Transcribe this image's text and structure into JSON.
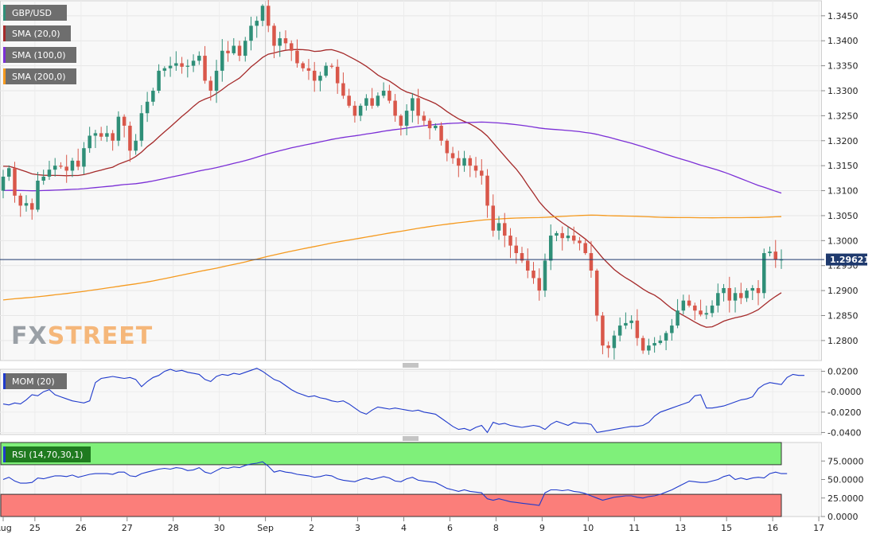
{
  "chart_data": [
    {
      "type": "candlestick",
      "symbol": "GBP/USD",
      "watermark": {
        "prefix": "FX",
        "suffix": "STREET"
      },
      "last_price_label": "1.29621",
      "last_price": 1.29621,
      "ylim": [
        1.276,
        1.348
      ],
      "y_ticks": [
        {
          "value": 1.345,
          "label": "1.3450"
        },
        {
          "value": 1.34,
          "label": "1.3400"
        },
        {
          "value": 1.335,
          "label": "1.3350"
        },
        {
          "value": 1.33,
          "label": "1.3300"
        },
        {
          "value": 1.325,
          "label": "1.3250"
        },
        {
          "value": 1.32,
          "label": "1.3200"
        },
        {
          "value": 1.315,
          "label": "1.3150"
        },
        {
          "value": 1.31,
          "label": "1.3100"
        },
        {
          "value": 1.305,
          "label": "1.3050"
        },
        {
          "value": 1.3,
          "label": "1.3000"
        },
        {
          "value": 1.295,
          "label": "1.2950"
        },
        {
          "value": 1.29,
          "label": "1.2900"
        },
        {
          "value": 1.285,
          "label": "1.2850"
        },
        {
          "value": 1.28,
          "label": "1.2800"
        }
      ],
      "x_ticks": [
        "Aug",
        "25",
        "26",
        "27",
        "28",
        "30",
        "Sep",
        "2",
        "3",
        "4",
        "6",
        "8",
        "9",
        "10",
        "11",
        "13",
        "15",
        "16",
        "17"
      ],
      "x_tick_index": [
        0,
        5.5,
        13.5,
        21.5,
        29.5,
        37.5,
        45.5,
        53.5,
        61.5,
        69.5,
        77.5,
        85.5,
        93.5,
        101.5,
        109.5,
        117.5,
        125.5,
        133.5,
        141.5
      ],
      "series": [
        {
          "name": "SMA (20,0)",
          "color": "#a52a2a"
        },
        {
          "name": "SMA (100,0)",
          "color": "#7b2fd6"
        },
        {
          "name": "SMA (200,0)",
          "color": "#f59a1f"
        }
      ],
      "colors": {
        "up": "#2f8f78",
        "down": "#d9574a",
        "price_line": "#1f3a6e"
      },
      "candles_close": [
        1.3128,
        1.3145,
        1.309,
        1.307,
        1.3075,
        1.3062,
        1.312,
        1.3128,
        1.3142,
        1.315,
        1.3148,
        1.314,
        1.316,
        1.3148,
        1.3185,
        1.321,
        1.3215,
        1.3208,
        1.3215,
        1.32,
        1.3248,
        1.323,
        1.318,
        1.32,
        1.3255,
        1.3278,
        1.33,
        1.334,
        1.3345,
        1.335,
        1.3355,
        1.3348,
        1.335,
        1.336,
        1.337,
        1.332,
        1.33,
        1.334,
        1.338,
        1.3375,
        1.339,
        1.337,
        1.34,
        1.343,
        1.344,
        1.347,
        1.343,
        1.339,
        1.3405,
        1.3395,
        1.338,
        1.3355,
        1.3345,
        1.334,
        1.332,
        1.333,
        1.335,
        1.3348,
        1.3315,
        1.329,
        1.327,
        1.325,
        1.327,
        1.3285,
        1.327,
        1.329,
        1.33,
        1.328,
        1.325,
        1.323,
        1.326,
        1.3285,
        1.325,
        1.324,
        1.3225,
        1.323,
        1.32,
        1.3175,
        1.3165,
        1.315,
        1.3165,
        1.315,
        1.314,
        1.313,
        1.307,
        1.302,
        1.3035,
        1.301,
        1.299,
        1.2975,
        1.296,
        1.294,
        1.2925,
        1.29,
        1.296,
        1.301,
        1.3015,
        1.3005,
        1.301,
        1.3,
        1.2995,
        1.2975,
        1.294,
        1.285,
        1.279,
        1.2785,
        1.281,
        1.283,
        1.2835,
        1.284,
        1.2805,
        1.278,
        1.279,
        1.2795,
        1.28,
        1.2815,
        1.283,
        1.286,
        1.288,
        1.287,
        1.286,
        1.2852,
        1.2855,
        1.287,
        1.2895,
        1.2905,
        1.288,
        1.2895,
        1.2885,
        1.29,
        1.2905,
        1.2895,
        1.2975,
        1.2978,
        1.2962,
        1.2962
      ]
    },
    {
      "type": "line",
      "label": "MOM (20)",
      "ylim": [
        -0.042,
        0.022
      ],
      "y_ticks": [
        {
          "value": 0.02,
          "label": "0.0200"
        },
        {
          "value": 0.0,
          "label": "-0.0000"
        },
        {
          "value": -0.02,
          "label": "-0.0200"
        },
        {
          "value": -0.04,
          "label": "-0.0400"
        }
      ],
      "color": "#1f3acc",
      "values": [
        -0.012,
        -0.013,
        -0.011,
        -0.012,
        -0.008,
        -0.003,
        -0.004,
        0.0,
        0.002,
        -0.003,
        -0.005,
        -0.007,
        -0.009,
        -0.01,
        -0.011,
        -0.009,
        0.009,
        0.013,
        0.014,
        0.015,
        0.014,
        0.013,
        0.014,
        0.012,
        0.005,
        0.01,
        0.014,
        0.016,
        0.02,
        0.022,
        0.02,
        0.021,
        0.019,
        0.018,
        0.017,
        0.012,
        0.01,
        0.015,
        0.017,
        0.016,
        0.018,
        0.017,
        0.019,
        0.021,
        0.023,
        0.02,
        0.016,
        0.012,
        0.01,
        0.006,
        0.002,
        -0.001,
        -0.003,
        -0.005,
        -0.004,
        -0.006,
        -0.007,
        -0.009,
        -0.01,
        -0.009,
        -0.012,
        -0.016,
        -0.02,
        -0.022,
        -0.018,
        -0.015,
        -0.016,
        -0.017,
        -0.016,
        -0.017,
        -0.018,
        -0.019,
        -0.018,
        -0.02,
        -0.021,
        -0.022,
        -0.026,
        -0.03,
        -0.034,
        -0.037,
        -0.036,
        -0.038,
        -0.035,
        -0.033,
        -0.04,
        -0.03,
        -0.032,
        -0.031,
        -0.033,
        -0.034,
        -0.035,
        -0.034,
        -0.033,
        -0.034,
        -0.037,
        -0.032,
        -0.029,
        -0.031,
        -0.033,
        -0.03,
        -0.031,
        -0.031,
        -0.032,
        -0.04,
        -0.039,
        -0.038,
        -0.037,
        -0.036,
        -0.035,
        -0.034,
        -0.034,
        -0.033,
        -0.03,
        -0.024,
        -0.02,
        -0.018,
        -0.016,
        -0.014,
        -0.012,
        -0.01,
        -0.004,
        -0.003,
        -0.016,
        -0.016,
        -0.015,
        -0.014,
        -0.012,
        -0.01,
        -0.008,
        -0.007,
        -0.005,
        0.003,
        0.007,
        0.009,
        0.008,
        0.007,
        0.014,
        0.017,
        0.016,
        0.016
      ]
    },
    {
      "type": "line",
      "label": "RSI (14,70,30,1)",
      "ylim": [
        0,
        100
      ],
      "overbought": 70,
      "oversold": 30,
      "y_ticks": [
        {
          "value": 75,
          "label": "75.0000"
        },
        {
          "value": 50,
          "label": "50.0000"
        },
        {
          "value": 25,
          "label": "25.0000"
        },
        {
          "value": 0,
          "label": "0.0000"
        }
      ],
      "color": "#1f3acc",
      "band_colors": {
        "overbought": "#7ff07a",
        "oversold": "#fb7e7a"
      },
      "values": [
        50,
        53,
        48,
        45,
        45,
        46,
        52,
        51,
        53,
        55,
        55,
        54,
        56,
        53,
        55,
        57,
        58,
        58,
        58,
        57,
        60,
        60,
        55,
        54,
        58,
        60,
        62,
        64,
        65,
        64,
        66,
        65,
        62,
        63,
        66,
        60,
        58,
        62,
        66,
        65,
        67,
        66,
        69,
        71,
        72,
        74,
        68,
        60,
        62,
        60,
        59,
        57,
        56,
        55,
        53,
        54,
        56,
        55,
        51,
        49,
        48,
        47,
        50,
        52,
        50,
        52,
        54,
        52,
        48,
        47,
        51,
        53,
        49,
        48,
        47,
        46,
        42,
        38,
        36,
        34,
        36,
        34,
        33,
        32,
        24,
        22,
        24,
        22,
        20,
        19,
        18,
        17,
        16,
        15,
        32,
        36,
        36,
        35,
        36,
        34,
        33,
        31,
        28,
        25,
        22,
        24,
        26,
        27,
        28,
        28,
        26,
        25,
        27,
        28,
        30,
        33,
        36,
        40,
        44,
        48,
        47,
        46,
        46,
        48,
        50,
        54,
        56,
        50,
        52,
        50,
        52,
        53,
        52,
        58,
        60,
        58,
        58
      ]
    }
  ]
}
